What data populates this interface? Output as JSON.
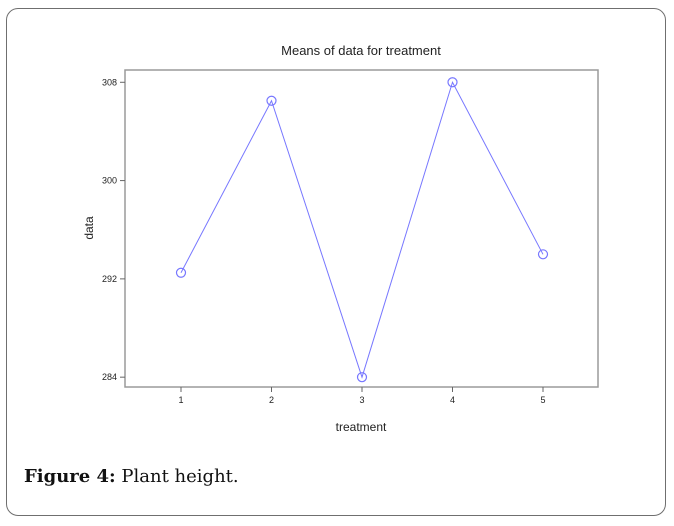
{
  "chart_data": {
    "type": "line",
    "title": "Means of data for treatment",
    "xlabel": "treatment",
    "ylabel": "data",
    "categories": [
      "1",
      "2",
      "3",
      "4",
      "5"
    ],
    "values": [
      292.5,
      306.5,
      284,
      308,
      294
    ],
    "yticks": [
      284,
      292,
      300,
      308
    ],
    "ylim": [
      283.2,
      309
    ],
    "grid": false,
    "line_color": "#7777ff",
    "marker": "open-circle"
  },
  "caption": {
    "label": "Figure 4:",
    "text": " Plant height."
  }
}
